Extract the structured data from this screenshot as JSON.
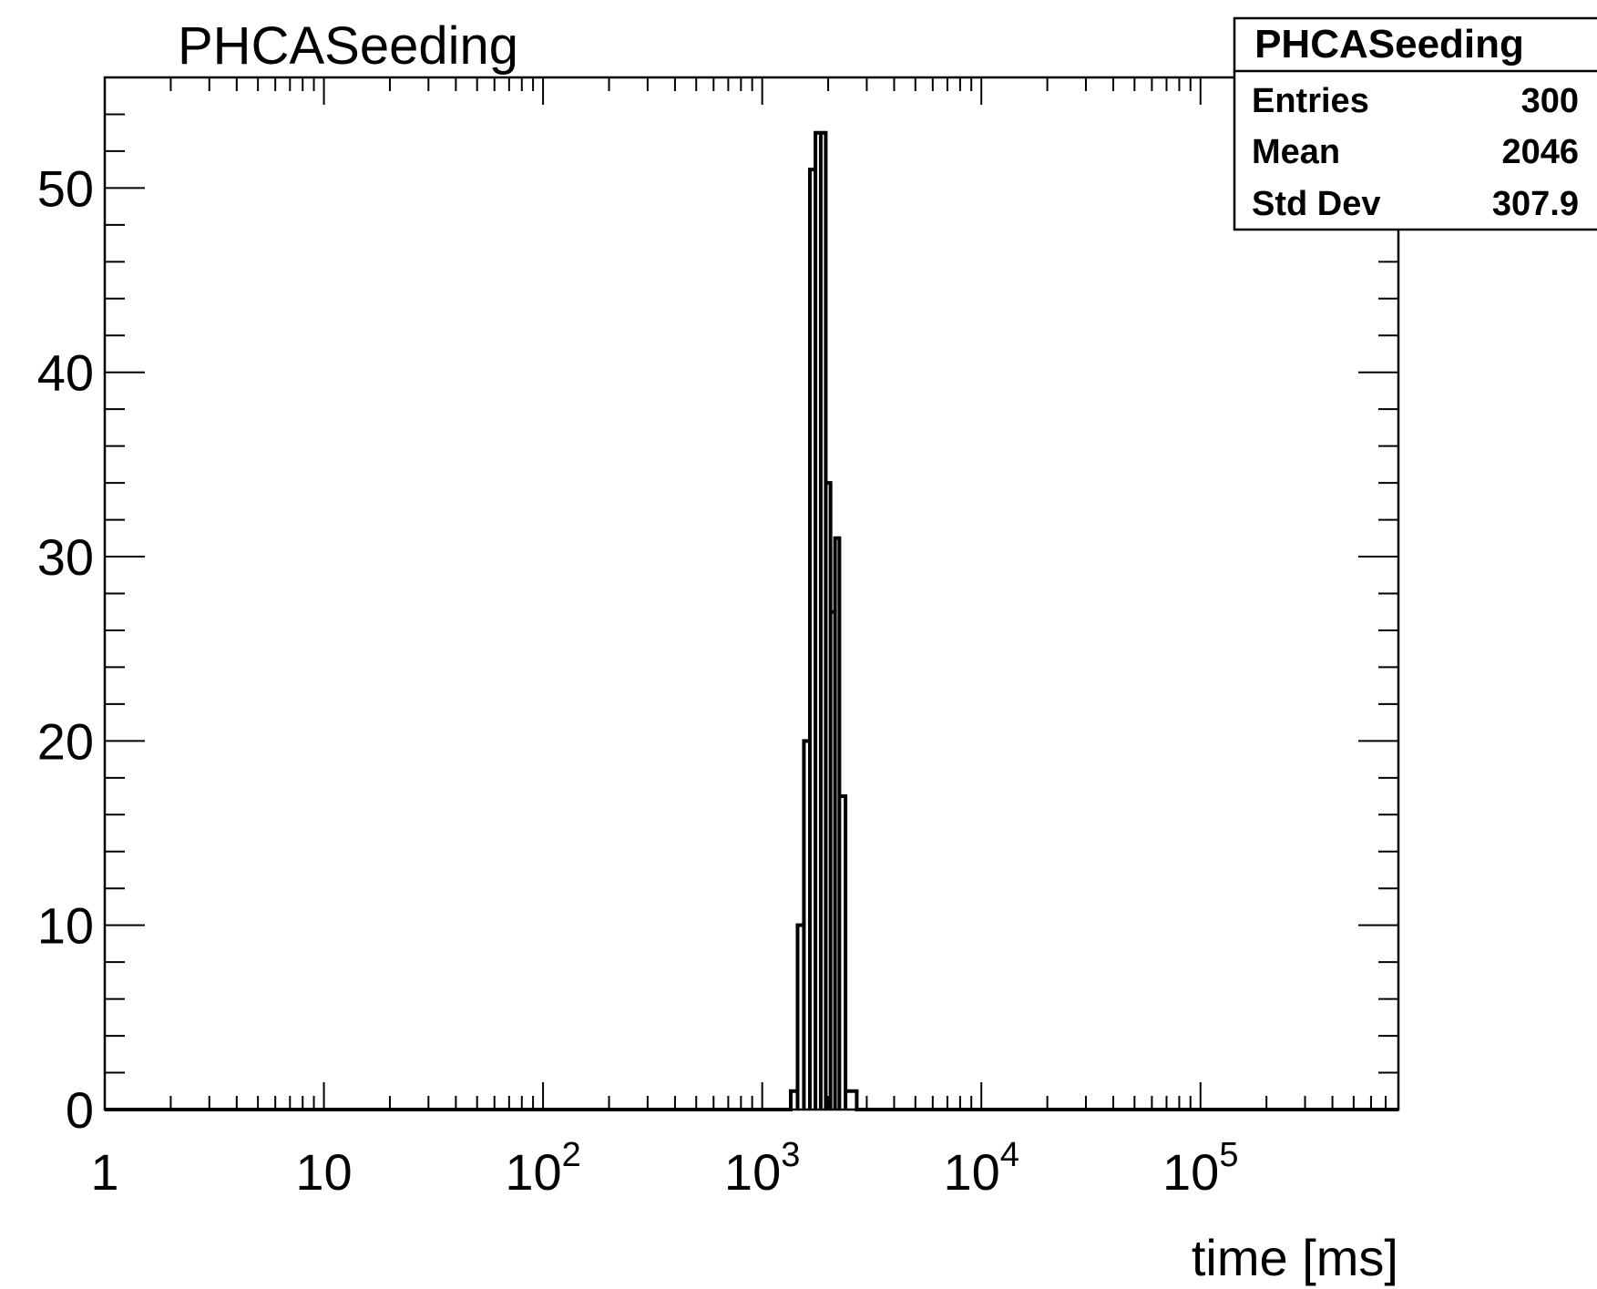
{
  "chart_data": {
    "type": "histogram",
    "title": "PHCASeeding",
    "xlabel": "time [ms]",
    "ylabel": "",
    "x_scale": "log",
    "xlim": [
      1,
      800000
    ],
    "ylim": [
      0,
      56
    ],
    "grid": false,
    "x_tick_labels": [
      {
        "value": 1,
        "base": "1",
        "exp": ""
      },
      {
        "value": 10,
        "base": "10",
        "exp": ""
      },
      {
        "value": 100,
        "base": "10",
        "exp": "2"
      },
      {
        "value": 1000,
        "base": "10",
        "exp": "3"
      },
      {
        "value": 10000,
        "base": "10",
        "exp": "4"
      },
      {
        "value": 100000,
        "base": "10",
        "exp": "5"
      }
    ],
    "y_ticks": [
      0,
      10,
      20,
      30,
      40,
      50
    ],
    "bins": [
      {
        "x_low": 1350,
        "x_high": 1450,
        "count": 1
      },
      {
        "x_low": 1450,
        "x_high": 1550,
        "count": 10
      },
      {
        "x_low": 1550,
        "x_high": 1650,
        "count": 20
      },
      {
        "x_low": 1650,
        "x_high": 1750,
        "count": 51
      },
      {
        "x_low": 1750,
        "x_high": 1850,
        "count": 53
      },
      {
        "x_low": 1850,
        "x_high": 1950,
        "count": 53
      },
      {
        "x_low": 1950,
        "x_high": 2050,
        "count": 34
      },
      {
        "x_low": 2050,
        "x_high": 2150,
        "count": 27
      },
      {
        "x_low": 2150,
        "x_high": 2250,
        "count": 31
      },
      {
        "x_low": 2250,
        "x_high": 2400,
        "count": 17
      },
      {
        "x_low": 2400,
        "x_high": 2700,
        "count": 1
      },
      {
        "x_low": 2700,
        "x_high": 3050,
        "count": 0
      }
    ],
    "stats_box": {
      "title": "PHCASeeding",
      "rows": [
        {
          "label": "Entries",
          "value": "300"
        },
        {
          "label": "Mean",
          "value": "2046"
        },
        {
          "label": "Std Dev",
          "value": "307.9"
        }
      ],
      "placement": "top-right"
    },
    "line_color": "#000000"
  }
}
